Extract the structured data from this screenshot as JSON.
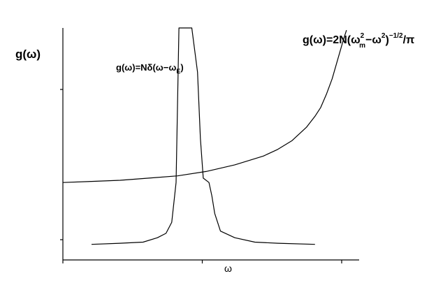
{
  "chart_data": {
    "type": "line",
    "xlabel": "ω",
    "ylabel": "g(ω)",
    "grid": false,
    "x_ticks": 3,
    "y_ticks": 2,
    "xlim": [
      0,
      1
    ],
    "ylim": [
      0,
      1
    ],
    "annotations": [
      {
        "prefix": "g(ω)=Nδ(ω−ω",
        "sub": "E",
        "suffix": ")"
      },
      {
        "prefix": "g(ω)=2N(ω",
        "sub": "m",
        "sup": "2",
        "middle": "−ω",
        "sup2": "2",
        "sup3": ")",
        "exp": "−1/2",
        "suffix": "/π"
      }
    ],
    "series": [
      {
        "x": [
          0.0,
          0.1,
          0.2,
          0.3,
          0.4,
          0.5,
          0.6,
          0.7,
          0.75,
          0.8,
          0.85,
          0.88,
          0.9,
          0.92,
          0.94,
          0.96,
          0.98,
          0.99
        ],
        "values": [
          0.3,
          0.305,
          0.31,
          0.32,
          0.33,
          0.35,
          0.38,
          0.42,
          0.45,
          0.49,
          0.55,
          0.6,
          0.64,
          0.7,
          0.77,
          0.86,
          0.95,
          0.99
        ]
      },
      {
        "x": [
          0.1,
          0.2,
          0.28,
          0.33,
          0.36,
          0.38,
          0.395,
          0.405,
          0.45,
          0.47,
          0.48,
          0.49,
          0.51,
          0.52,
          0.53,
          0.55,
          0.6,
          0.67,
          0.75,
          0.88
        ],
        "values": [
          0.02,
          0.025,
          0.03,
          0.05,
          0.07,
          0.12,
          0.3,
          1.0,
          1.0,
          0.8,
          0.5,
          0.32,
          0.3,
          0.24,
          0.16,
          0.08,
          0.05,
          0.03,
          0.025,
          0.02
        ]
      }
    ]
  }
}
